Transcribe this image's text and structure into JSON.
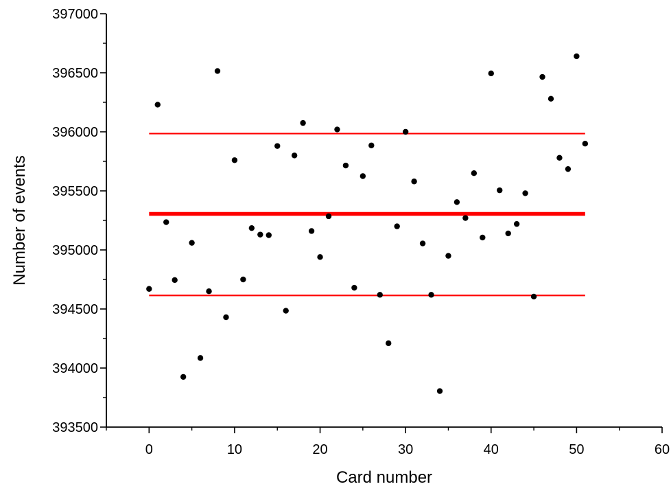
{
  "chart_data": {
    "type": "scatter",
    "title": "",
    "xlabel": "Card number",
    "ylabel": "Number of events",
    "xlim": [
      -5,
      60
    ],
    "ylim": [
      393500,
      397000
    ],
    "x_ticks": [
      0,
      10,
      20,
      30,
      40,
      50,
      60
    ],
    "x_tick_labels": [
      "0",
      "10",
      "20",
      "30",
      "40",
      "50",
      "60"
    ],
    "y_ticks": [
      393500,
      394000,
      394500,
      395000,
      395500,
      396000,
      396500,
      397000
    ],
    "y_tick_labels": [
      "393500",
      "394000",
      "394500",
      "395000",
      "395500",
      "396000",
      "396500",
      "397000"
    ],
    "grid": false,
    "colors": {
      "points": "#000000",
      "lines": "#ff0000",
      "axes": "#000000"
    },
    "series": [
      {
        "type": "scatter",
        "x": [
          0,
          1,
          2,
          3,
          4,
          5,
          6,
          7,
          8,
          9,
          10,
          11,
          12,
          13,
          14,
          15,
          16,
          17,
          18,
          19,
          20,
          21,
          22,
          23,
          24,
          25,
          26,
          27,
          28,
          29,
          30,
          31,
          32,
          33,
          34,
          35,
          36,
          37,
          38,
          39,
          40,
          41,
          42,
          43,
          44,
          45,
          46,
          47,
          48,
          49,
          50,
          51
        ],
        "y": [
          394670,
          396230,
          395235,
          394745,
          393925,
          395060,
          394085,
          394650,
          396515,
          394430,
          395760,
          394750,
          395185,
          395130,
          395125,
          395880,
          394485,
          395800,
          396075,
          395160,
          394940,
          395285,
          396020,
          395715,
          394680,
          395625,
          395885,
          394620,
          394210,
          395200,
          396000,
          395580,
          395055,
          394620,
          393805,
          394950,
          395405,
          395270,
          395650,
          395105,
          396495,
          395505,
          395140,
          395220,
          395480,
          394605,
          396465,
          396280,
          395780,
          395685,
          396640,
          395900
        ]
      },
      {
        "type": "line",
        "x": [
          0,
          51
        ],
        "y": [
          395305,
          395305
        ]
      },
      {
        "type": "line",
        "x": [
          0,
          51
        ],
        "y": [
          395985,
          395985
        ]
      },
      {
        "type": "line",
        "x": [
          0,
          51
        ],
        "y": [
          394615,
          394615
        ]
      }
    ]
  }
}
